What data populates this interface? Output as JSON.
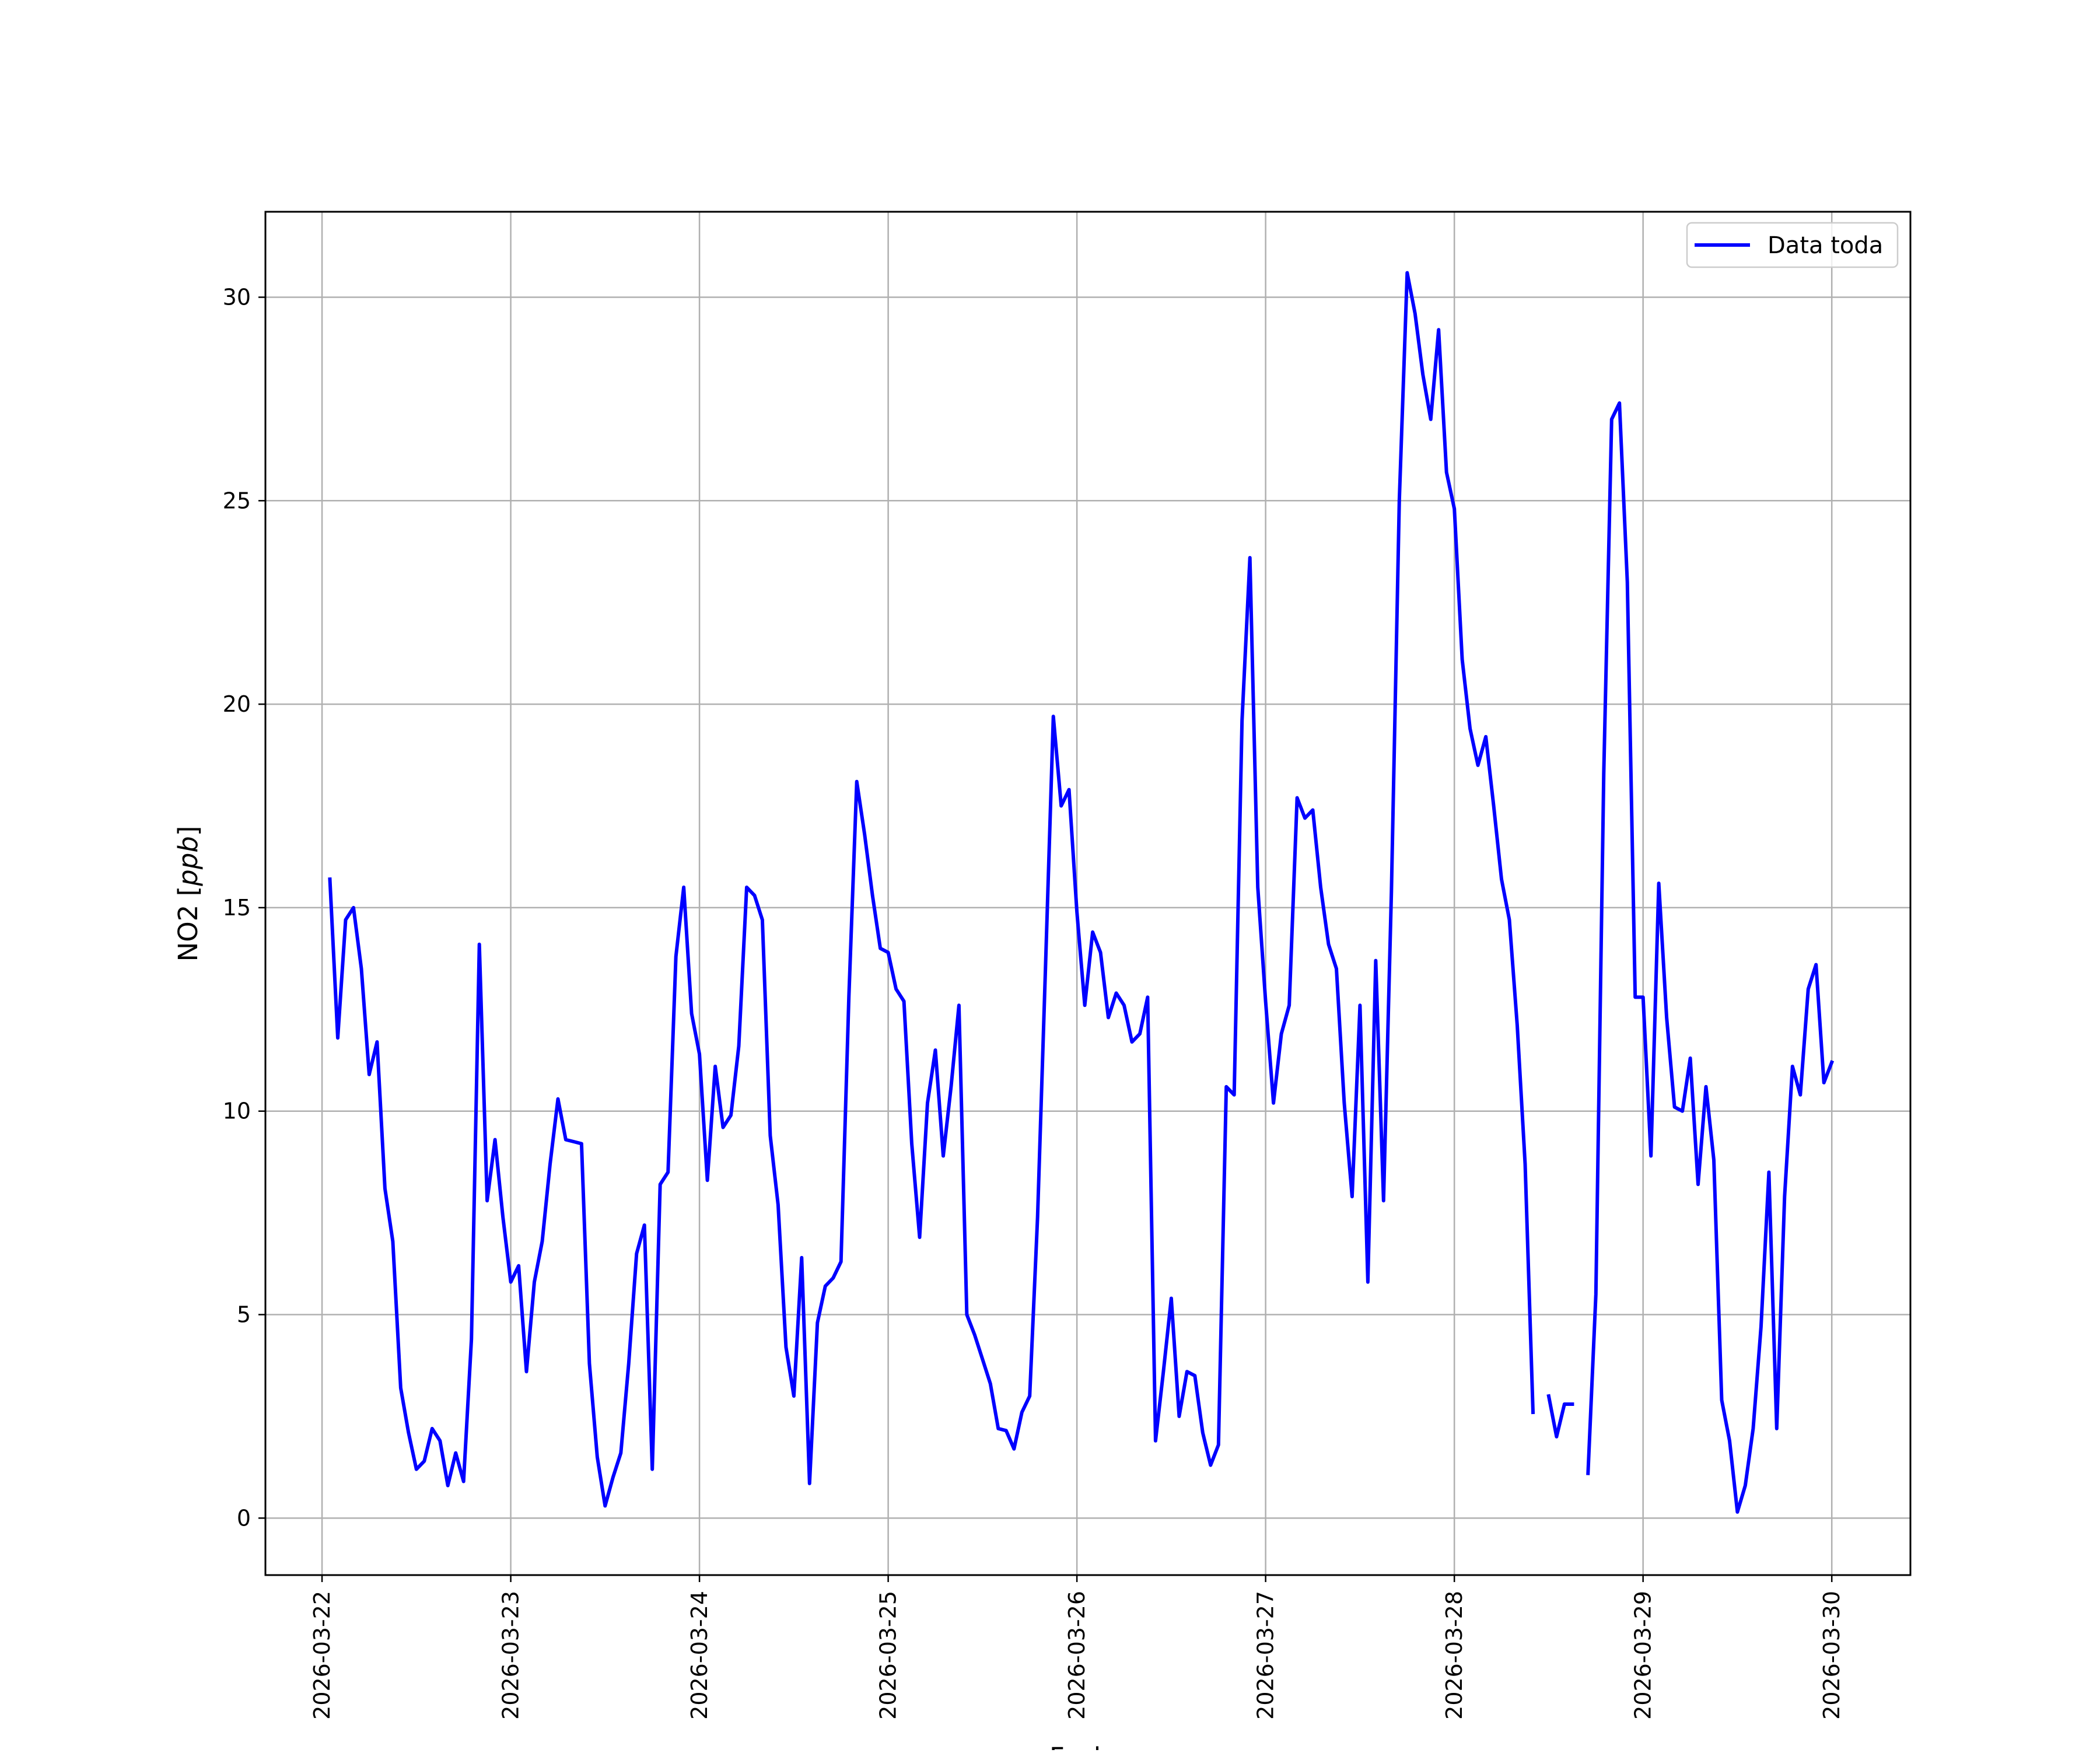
{
  "colors": {
    "background": "#ffffff",
    "line": "#0000ff",
    "grid": "#b0b0b0",
    "axes": "#000000"
  },
  "chart_data": {
    "type": "line",
    "title": "",
    "xlabel": "Fecha",
    "ylabel_prefix": "NO2 [",
    "ylabel_unit": "ppb",
    "ylabel_suffix": "]",
    "x_tick_labels": [
      "2026-03-22",
      "2026-03-23",
      "2026-03-24",
      "2026-03-25",
      "2026-03-26",
      "2026-03-27",
      "2026-03-28",
      "2026-03-29",
      "2026-03-30"
    ],
    "y_tick_labels": [
      "0",
      "5",
      "10",
      "15",
      "20",
      "25",
      "30"
    ],
    "ylim": [
      -1.4,
      32.1
    ],
    "xlim": [
      "2026-03-21T16:48",
      "2026-03-30T10:00"
    ],
    "grid": true,
    "legend_position": "top-right",
    "series": [
      {
        "name": "Data toda",
        "color": "#0000ff",
        "points": [
          [
            "2026-03-22T01:00",
            15.7
          ],
          [
            "2026-03-22T02:00",
            11.8
          ],
          [
            "2026-03-22T03:00",
            14.7
          ],
          [
            "2026-03-22T04:00",
            15.0
          ],
          [
            "2026-03-22T05:00",
            13.5
          ],
          [
            "2026-03-22T06:00",
            10.9
          ],
          [
            "2026-03-22T07:00",
            11.7
          ],
          [
            "2026-03-22T08:00",
            8.1
          ],
          [
            "2026-03-22T09:00",
            6.8
          ],
          [
            "2026-03-22T10:00",
            3.2
          ],
          [
            "2026-03-22T11:00",
            2.1
          ],
          [
            "2026-03-22T12:00",
            1.2
          ],
          [
            "2026-03-22T13:00",
            1.4
          ],
          [
            "2026-03-22T14:00",
            2.2
          ],
          [
            "2026-03-22T15:00",
            1.9
          ],
          [
            "2026-03-22T16:00",
            0.8
          ],
          [
            "2026-03-22T17:00",
            1.6
          ],
          [
            "2026-03-22T18:00",
            0.9
          ],
          [
            "2026-03-22T19:00",
            4.4
          ],
          [
            "2026-03-22T20:00",
            14.1
          ],
          [
            "2026-03-22T21:00",
            7.8
          ],
          [
            "2026-03-22T22:00",
            9.3
          ],
          [
            "2026-03-22T23:00",
            7.4
          ],
          [
            "2026-03-23T00:00",
            5.8
          ],
          [
            "2026-03-23T01:00",
            6.2
          ],
          [
            "2026-03-23T02:00",
            3.6
          ],
          [
            "2026-03-23T03:00",
            5.8
          ],
          [
            "2026-03-23T04:00",
            6.8
          ],
          [
            "2026-03-23T05:00",
            8.7
          ],
          [
            "2026-03-23T06:00",
            10.3
          ],
          [
            "2026-03-23T07:00",
            9.3
          ],
          [
            "2026-03-23T08:00",
            9.25
          ],
          [
            "2026-03-23T09:00",
            9.2
          ],
          [
            "2026-03-23T10:00",
            3.8
          ],
          [
            "2026-03-23T11:00",
            1.5
          ],
          [
            "2026-03-23T12:00",
            0.3
          ],
          [
            "2026-03-23T13:00",
            1.0
          ],
          [
            "2026-03-23T14:00",
            1.6
          ],
          [
            "2026-03-23T15:00",
            3.8
          ],
          [
            "2026-03-23T16:00",
            6.5
          ],
          [
            "2026-03-23T17:00",
            7.2
          ],
          [
            "2026-03-23T18:00",
            1.2
          ],
          [
            "2026-03-23T19:00",
            8.2
          ],
          [
            "2026-03-23T20:00",
            8.5
          ],
          [
            "2026-03-23T21:00",
            13.8
          ],
          [
            "2026-03-23T22:00",
            15.5
          ],
          [
            "2026-03-23T23:00",
            12.4
          ],
          [
            "2026-03-24T00:00",
            11.4
          ],
          [
            "2026-03-24T01:00",
            8.3
          ],
          [
            "2026-03-24T02:00",
            11.1
          ],
          [
            "2026-03-24T03:00",
            9.6
          ],
          [
            "2026-03-24T04:00",
            9.9
          ],
          [
            "2026-03-24T05:00",
            11.6
          ],
          [
            "2026-03-24T06:00",
            15.5
          ],
          [
            "2026-03-24T07:00",
            15.3
          ],
          [
            "2026-03-24T08:00",
            14.7
          ],
          [
            "2026-03-24T09:00",
            9.4
          ],
          [
            "2026-03-24T10:00",
            7.7
          ],
          [
            "2026-03-24T11:00",
            4.2
          ],
          [
            "2026-03-24T12:00",
            3.0
          ],
          [
            "2026-03-24T13:00",
            6.4
          ],
          [
            "2026-03-24T14:00",
            0.85
          ],
          [
            "2026-03-24T15:00",
            4.8
          ],
          [
            "2026-03-24T16:00",
            5.7
          ],
          [
            "2026-03-24T17:00",
            5.9
          ],
          [
            "2026-03-24T18:00",
            6.3
          ],
          [
            "2026-03-24T19:00",
            12.8
          ],
          [
            "2026-03-24T20:00",
            18.1
          ],
          [
            "2026-03-24T21:00",
            16.8
          ],
          [
            "2026-03-24T22:00",
            15.3
          ],
          [
            "2026-03-24T23:00",
            14.0
          ],
          [
            "2026-03-25T00:00",
            13.9
          ],
          [
            "2026-03-25T01:00",
            13.0
          ],
          [
            "2026-03-25T02:00",
            12.7
          ],
          [
            "2026-03-25T03:00",
            9.2
          ],
          [
            "2026-03-25T04:00",
            6.9
          ],
          [
            "2026-03-25T05:00",
            10.2
          ],
          [
            "2026-03-25T06:00",
            11.5
          ],
          [
            "2026-03-25T07:00",
            8.9
          ],
          [
            "2026-03-25T08:00",
            10.6
          ],
          [
            "2026-03-25T09:00",
            12.6
          ],
          [
            "2026-03-25T10:00",
            5.0
          ],
          [
            "2026-03-25T11:00",
            4.5
          ],
          [
            "2026-03-25T12:00",
            3.9
          ],
          [
            "2026-03-25T13:00",
            3.3
          ],
          [
            "2026-03-25T14:00",
            2.2
          ],
          [
            "2026-03-25T15:00",
            2.15
          ],
          [
            "2026-03-25T16:00",
            1.7
          ],
          [
            "2026-03-25T17:00",
            2.6
          ],
          [
            "2026-03-25T18:00",
            3.0
          ],
          [
            "2026-03-25T19:00",
            7.4
          ],
          [
            "2026-03-25T20:00",
            13.5
          ],
          [
            "2026-03-25T21:00",
            19.7
          ],
          [
            "2026-03-25T22:00",
            17.5
          ],
          [
            "2026-03-25T23:00",
            17.9
          ],
          [
            "2026-03-26T00:00",
            14.9
          ],
          [
            "2026-03-26T01:00",
            12.6
          ],
          [
            "2026-03-26T02:00",
            14.4
          ],
          [
            "2026-03-26T03:00",
            13.9
          ],
          [
            "2026-03-26T04:00",
            12.3
          ],
          [
            "2026-03-26T05:00",
            12.9
          ],
          [
            "2026-03-26T06:00",
            12.6
          ],
          [
            "2026-03-26T07:00",
            11.7
          ],
          [
            "2026-03-26T08:00",
            11.9
          ],
          [
            "2026-03-26T09:00",
            12.8
          ],
          [
            "2026-03-26T10:00",
            1.9
          ],
          [
            "2026-03-26T11:00",
            3.6
          ],
          [
            "2026-03-26T12:00",
            5.4
          ],
          [
            "2026-03-26T13:00",
            2.5
          ],
          [
            "2026-03-26T14:00",
            3.6
          ],
          [
            "2026-03-26T15:00",
            3.5
          ],
          [
            "2026-03-26T16:00",
            2.1
          ],
          [
            "2026-03-26T17:00",
            1.3
          ],
          [
            "2026-03-26T18:00",
            1.8
          ],
          [
            "2026-03-26T19:00",
            10.6
          ],
          [
            "2026-03-26T20:00",
            10.4
          ],
          [
            "2026-03-26T21:00",
            19.6
          ],
          [
            "2026-03-26T22:00",
            23.6
          ],
          [
            "2026-03-26T23:00",
            15.5
          ],
          [
            "2026-03-27T00:00",
            12.7
          ],
          [
            "2026-03-27T01:00",
            10.2
          ],
          [
            "2026-03-27T02:00",
            11.9
          ],
          [
            "2026-03-27T03:00",
            12.6
          ],
          [
            "2026-03-27T04:00",
            17.7
          ],
          [
            "2026-03-27T05:00",
            17.2
          ],
          [
            "2026-03-27T06:00",
            17.4
          ],
          [
            "2026-03-27T07:00",
            15.5
          ],
          [
            "2026-03-27T08:00",
            14.1
          ],
          [
            "2026-03-27T09:00",
            13.5
          ],
          [
            "2026-03-27T10:00",
            10.2
          ],
          [
            "2026-03-27T11:00",
            7.9
          ],
          [
            "2026-03-27T12:00",
            12.6
          ],
          [
            "2026-03-27T13:00",
            5.8
          ],
          [
            "2026-03-27T14:00",
            13.7
          ],
          [
            "2026-03-27T15:00",
            7.8
          ],
          [
            "2026-03-27T16:00",
            15.4
          ],
          [
            "2026-03-27T17:00",
            25.0
          ],
          [
            "2026-03-27T18:00",
            30.6
          ],
          [
            "2026-03-27T19:00",
            29.6
          ],
          [
            "2026-03-27T20:00",
            28.1
          ],
          [
            "2026-03-27T21:00",
            27.0
          ],
          [
            "2026-03-27T22:00",
            29.2
          ],
          [
            "2026-03-27T23:00",
            25.7
          ],
          [
            "2026-03-28T00:00",
            24.8
          ],
          [
            "2026-03-28T01:00",
            21.1
          ],
          [
            "2026-03-28T02:00",
            19.4
          ],
          [
            "2026-03-28T03:00",
            18.5
          ],
          [
            "2026-03-28T04:00",
            19.2
          ],
          [
            "2026-03-28T05:00",
            17.5
          ],
          [
            "2026-03-28T06:00",
            15.7
          ],
          [
            "2026-03-28T07:00",
            14.7
          ],
          [
            "2026-03-28T08:00",
            12.1
          ],
          [
            "2026-03-28T09:00",
            8.7
          ],
          [
            "2026-03-28T10:00",
            2.6
          ],
          [
            "2026-03-28T11:00",
            null
          ],
          [
            "2026-03-28T12:00",
            3.0
          ],
          [
            "2026-03-28T13:00",
            2.0
          ],
          [
            "2026-03-28T14:00",
            2.8
          ],
          [
            "2026-03-28T15:00",
            2.8
          ],
          [
            "2026-03-28T16:00",
            null
          ],
          [
            "2026-03-28T17:00",
            1.1
          ],
          [
            "2026-03-28T18:00",
            5.5
          ],
          [
            "2026-03-28T19:00",
            18.3
          ],
          [
            "2026-03-28T20:00",
            27.0
          ],
          [
            "2026-03-28T21:00",
            27.4
          ],
          [
            "2026-03-28T22:00",
            23.0
          ],
          [
            "2026-03-28T23:00",
            12.8
          ],
          [
            "2026-03-29T00:00",
            12.8
          ],
          [
            "2026-03-29T01:00",
            8.9
          ],
          [
            "2026-03-29T02:00",
            15.6
          ],
          [
            "2026-03-29T03:00",
            12.3
          ],
          [
            "2026-03-29T04:00",
            10.1
          ],
          [
            "2026-03-29T05:00",
            10.0
          ],
          [
            "2026-03-29T06:00",
            11.3
          ],
          [
            "2026-03-29T07:00",
            8.2
          ],
          [
            "2026-03-29T08:00",
            10.6
          ],
          [
            "2026-03-29T09:00",
            8.8
          ],
          [
            "2026-03-29T10:00",
            2.9
          ],
          [
            "2026-03-29T11:00",
            1.9
          ],
          [
            "2026-03-29T12:00",
            0.15
          ],
          [
            "2026-03-29T13:00",
            0.8
          ],
          [
            "2026-03-29T14:00",
            2.2
          ],
          [
            "2026-03-29T15:00",
            4.7
          ],
          [
            "2026-03-29T16:00",
            8.5
          ],
          [
            "2026-03-29T17:00",
            2.2
          ],
          [
            "2026-03-29T18:00",
            7.9
          ],
          [
            "2026-03-29T19:00",
            11.1
          ],
          [
            "2026-03-29T20:00",
            10.4
          ],
          [
            "2026-03-29T21:00",
            13.0
          ],
          [
            "2026-03-29T22:00",
            13.6
          ],
          [
            "2026-03-29T23:00",
            10.7
          ],
          [
            "2026-03-30T00:00",
            11.2
          ]
        ]
      }
    ]
  }
}
